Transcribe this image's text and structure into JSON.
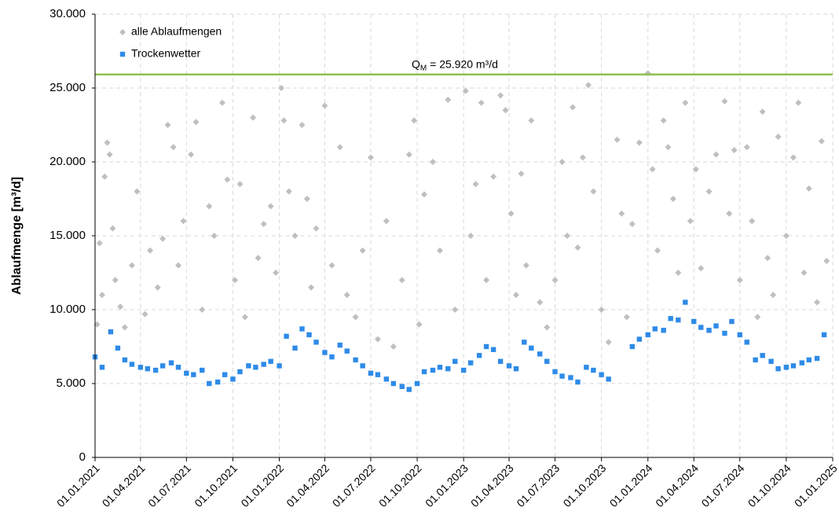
{
  "chart_data": {
    "type": "scatter",
    "y_label": "Ablaufmenge [m³/d]",
    "xlim": [
      "01.01.2021",
      "01.01.2025"
    ],
    "xticks": [
      "01.01.2021",
      "01.04.2021",
      "01.07.2021",
      "01.10.2021",
      "01.01.2022",
      "01.04.2022",
      "01.07.2022",
      "01.10.2022",
      "01.01.2023",
      "01.04.2023",
      "01.07.2023",
      "01.10.2023",
      "01.01.2024",
      "01.04.2024",
      "01.07.2024",
      "01.10.2024",
      "01.01.2025"
    ],
    "ylim": [
      0,
      30000
    ],
    "yticks": [
      0,
      {
        "value": 5000,
        "label": "5.000"
      },
      {
        "value": 10000,
        "label": "10.000"
      },
      {
        "value": 15000,
        "label": "15.000"
      },
      {
        "value": 20000,
        "label": "20.000"
      },
      {
        "value": 25000,
        "label": "25.000"
      },
      {
        "value": 30000,
        "label": "30.000"
      }
    ],
    "grid": true,
    "legend": "top-left",
    "reference_line": {
      "value": 25920,
      "color": "#92c050",
      "symbol": "Q",
      "subscript": "M",
      "text": " = 25.920 m³/d"
    },
    "series": [
      {
        "name": "alle Ablaufmengen",
        "color": "#bfbfbf",
        "marker": "diamond",
        "x": [
          "05.01.2021",
          "10.01.2021",
          "15.01.2021",
          "20.01.2021",
          "25.01.2021",
          "30.01.2021",
          "05.02.2021",
          "10.02.2021",
          "20.02.2021",
          "01.03.2021",
          "15.03.2021",
          "25.03.2021",
          "10.04.2021",
          "20.04.2021",
          "05.05.2021",
          "15.05.2021",
          "25.05.2021",
          "05.06.2021",
          "15.06.2021",
          "25.06.2021",
          "10.07.2021",
          "20.07.2021",
          "01.08.2021",
          "15.08.2021",
          "25.08.2021",
          "10.09.2021",
          "20.09.2021",
          "05.10.2021",
          "15.10.2021",
          "25.10.2021",
          "10.11.2021",
          "20.11.2021",
          "01.12.2021",
          "15.12.2021",
          "25.12.2021",
          "05.01.2022",
          "10.01.2022",
          "20.01.2022",
          "01.02.2022",
          "15.02.2022",
          "25.02.2022",
          "05.03.2022",
          "15.03.2022",
          "01.04.2022",
          "15.04.2022",
          "01.05.2022",
          "15.05.2022",
          "01.06.2022",
          "15.06.2022",
          "01.07.2022",
          "15.07.2022",
          "01.08.2022",
          "15.08.2022",
          "01.09.2022",
          "15.09.2022",
          "25.09.2022",
          "05.10.2022",
          "15.10.2022",
          "01.11.2022",
          "15.11.2022",
          "01.12.2022",
          "15.12.2022",
          "05.01.2023",
          "15.01.2023",
          "25.01.2023",
          "05.02.2023",
          "15.02.2023",
          "01.03.2023",
          "15.03.2023",
          "25.03.2023",
          "05.04.2023",
          "15.04.2023",
          "25.04.2023",
          "05.05.2023",
          "15.05.2023",
          "01.06.2023",
          "15.06.2023",
          "01.07.2023",
          "15.07.2023",
          "25.07.2023",
          "05.08.2023",
          "15.08.2023",
          "25.08.2023",
          "05.09.2023",
          "15.09.2023",
          "01.10.2023",
          "15.10.2023",
          "01.11.2023",
          "10.11.2023",
          "20.11.2023",
          "01.12.2023",
          "15.12.2023",
          "01.01.2024",
          "10.01.2024",
          "20.01.2024",
          "01.02.2024",
          "10.02.2024",
          "20.02.2024",
          "01.03.2024",
          "15.03.2024",
          "25.03.2024",
          "05.04.2024",
          "15.04.2024",
          "01.05.2024",
          "15.05.2024",
          "01.06.2024",
          "10.06.2024",
          "20.06.2024",
          "01.07.2024",
          "15.07.2024",
          "25.07.2024",
          "05.08.2024",
          "15.08.2024",
          "25.08.2024",
          "05.09.2024",
          "15.09.2024",
          "01.10.2024",
          "15.10.2024",
          "25.10.2024",
          "05.11.2024",
          "15.11.2024",
          "01.12.2024",
          "10.12.2024",
          "20.12.2024"
        ],
        "values": [
          9000,
          14500,
          11000,
          19000,
          21300,
          20500,
          15500,
          12000,
          10200,
          8800,
          13000,
          18000,
          9700,
          14000,
          11500,
          14800,
          22500,
          21000,
          13000,
          16000,
          20500,
          22700,
          10000,
          17000,
          15000,
          24000,
          18800,
          12000,
          18500,
          9500,
          23000,
          13500,
          15800,
          17000,
          12500,
          25000,
          22800,
          18000,
          15000,
          22500,
          17500,
          11500,
          15500,
          23800,
          13000,
          21000,
          11000,
          9500,
          14000,
          20300,
          8000,
          16000,
          7500,
          12000,
          20500,
          22800,
          9000,
          17800,
          20000,
          14000,
          24200,
          10000,
          24800,
          15000,
          18500,
          24000,
          12000,
          19000,
          24500,
          23500,
          16500,
          11000,
          19200,
          13000,
          22800,
          10500,
          8800,
          12000,
          20000,
          15000,
          23700,
          14200,
          20300,
          25200,
          18000,
          10000,
          7800,
          21500,
          16500,
          9500,
          15800,
          21300,
          26000,
          19500,
          14000,
          22800,
          21000,
          17500,
          12500,
          24000,
          16000,
          19500,
          12800,
          18000,
          20500,
          24100,
          16500,
          20800,
          12000,
          21000,
          16000,
          9500,
          23400,
          13500,
          11000,
          21700,
          15000,
          20300,
          24000,
          12500,
          18200,
          10500,
          21400,
          13300
        ]
      },
      {
        "name": "Trockenwetter",
        "color": "#2e8be8",
        "marker": "square",
        "x": [
          "01.01.2021",
          "15.01.2021",
          "01.02.2021",
          "15.02.2021",
          "01.03.2021",
          "15.03.2021",
          "01.04.2021",
          "15.04.2021",
          "01.05.2021",
          "15.05.2021",
          "01.06.2021",
          "15.06.2021",
          "01.07.2021",
          "15.07.2021",
          "01.08.2021",
          "15.08.2021",
          "01.09.2021",
          "15.09.2021",
          "01.10.2021",
          "15.10.2021",
          "01.11.2021",
          "15.11.2021",
          "01.12.2021",
          "15.12.2021",
          "01.01.2022",
          "15.01.2022",
          "01.02.2022",
          "15.02.2022",
          "01.03.2022",
          "15.03.2022",
          "01.04.2022",
          "15.04.2022",
          "01.05.2022",
          "15.05.2022",
          "01.06.2022",
          "15.06.2022",
          "01.07.2022",
          "15.07.2022",
          "01.08.2022",
          "15.08.2022",
          "01.09.2022",
          "15.09.2022",
          "01.10.2022",
          "15.10.2022",
          "01.11.2022",
          "15.11.2022",
          "01.12.2022",
          "15.12.2022",
          "01.01.2023",
          "15.01.2023",
          "01.02.2023",
          "15.02.2023",
          "01.03.2023",
          "15.03.2023",
          "01.04.2023",
          "15.04.2023",
          "01.05.2023",
          "15.05.2023",
          "01.06.2023",
          "15.06.2023",
          "01.07.2023",
          "15.07.2023",
          "01.08.2023",
          "15.08.2023",
          "01.09.2023",
          "15.09.2023",
          "01.10.2023",
          "15.10.2023",
          "01.12.2023",
          "15.12.2023",
          "01.01.2024",
          "15.01.2024",
          "01.02.2024",
          "15.02.2024",
          "01.03.2024",
          "15.03.2024",
          "01.04.2024",
          "15.04.2024",
          "01.05.2024",
          "15.05.2024",
          "01.06.2024",
          "15.06.2024",
          "01.07.2024",
          "15.07.2024",
          "01.08.2024",
          "15.08.2024",
          "01.09.2024",
          "15.09.2024",
          "01.10.2024",
          "15.10.2024",
          "01.11.2024",
          "15.11.2024",
          "01.12.2024",
          "15.12.2024"
        ],
        "values": [
          6800,
          6100,
          8500,
          7400,
          6600,
          6300,
          6100,
          6000,
          5900,
          6200,
          6400,
          6100,
          5700,
          5600,
          5900,
          5000,
          5100,
          5600,
          5300,
          5800,
          6200,
          6100,
          6300,
          6500,
          6200,
          8200,
          7400,
          8700,
          8300,
          7800,
          7100,
          6800,
          7600,
          7200,
          6600,
          6200,
          5700,
          5600,
          5300,
          5000,
          4800,
          4600,
          5000,
          5800,
          5900,
          6100,
          6000,
          6500,
          5900,
          6400,
          6900,
          7500,
          7300,
          6500,
          6200,
          6000,
          7800,
          7400,
          7000,
          6500,
          5800,
          5500,
          5400,
          5100,
          6100,
          5900,
          5600,
          5300,
          7500,
          8000,
          8300,
          8700,
          8600,
          9400,
          9300,
          10500,
          9200,
          8800,
          8600,
          8900,
          8400,
          9200,
          8300,
          7800,
          6600,
          6900,
          6500,
          6000,
          6100,
          6200,
          6400,
          6600,
          6700,
          8300
        ]
      }
    ]
  }
}
